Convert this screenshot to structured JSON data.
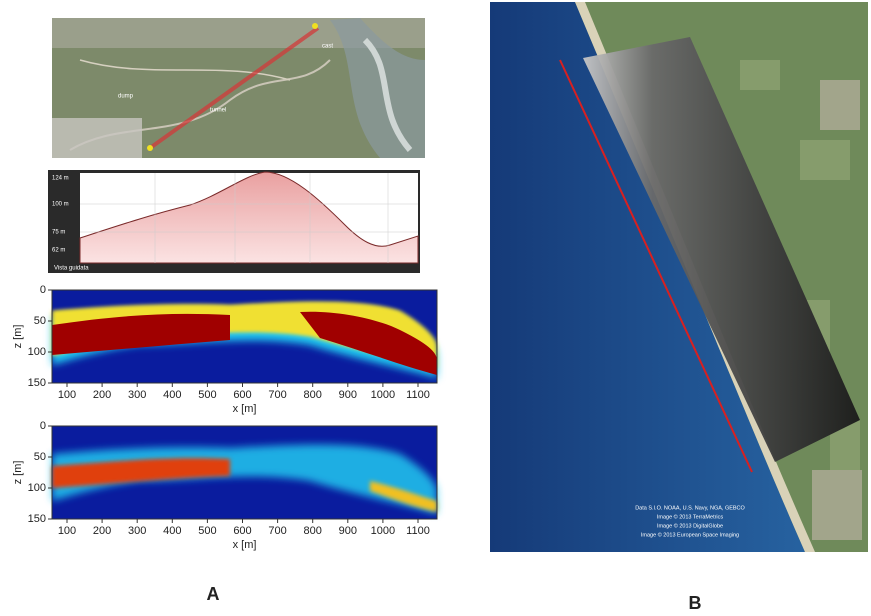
{
  "panel_a": {
    "label": "A",
    "map_labels": [
      "dump",
      "tunnel",
      "cast"
    ],
    "profile": {
      "y_labels": [
        "124 m",
        "100 m",
        "75 m",
        "62 m"
      ],
      "legend": "Vista guidata"
    },
    "radargrams": [
      {
        "ylabel": "z [m]",
        "xlabel": "x [m]",
        "yticks": [
          0,
          50,
          100,
          150
        ],
        "xticks": [
          100,
          200,
          300,
          400,
          500,
          600,
          700,
          800,
          900,
          1000,
          1100
        ]
      },
      {
        "ylabel": "z [m]",
        "xlabel": "x [m]",
        "yticks": [
          0,
          50,
          100,
          150
        ],
        "xticks": [
          100,
          200,
          300,
          400,
          500,
          600,
          700,
          800,
          900,
          1000,
          1100
        ]
      }
    ]
  },
  "panel_b": {
    "label": "B",
    "attribution": [
      "Data S.I.O. NOAA, U.S. Navy, NGA, GEBCO",
      "Image © 2013 TerraMetrics",
      "Image © 2013 DigitalGlobe",
      "Image © 2013 European Space Imaging"
    ]
  }
}
